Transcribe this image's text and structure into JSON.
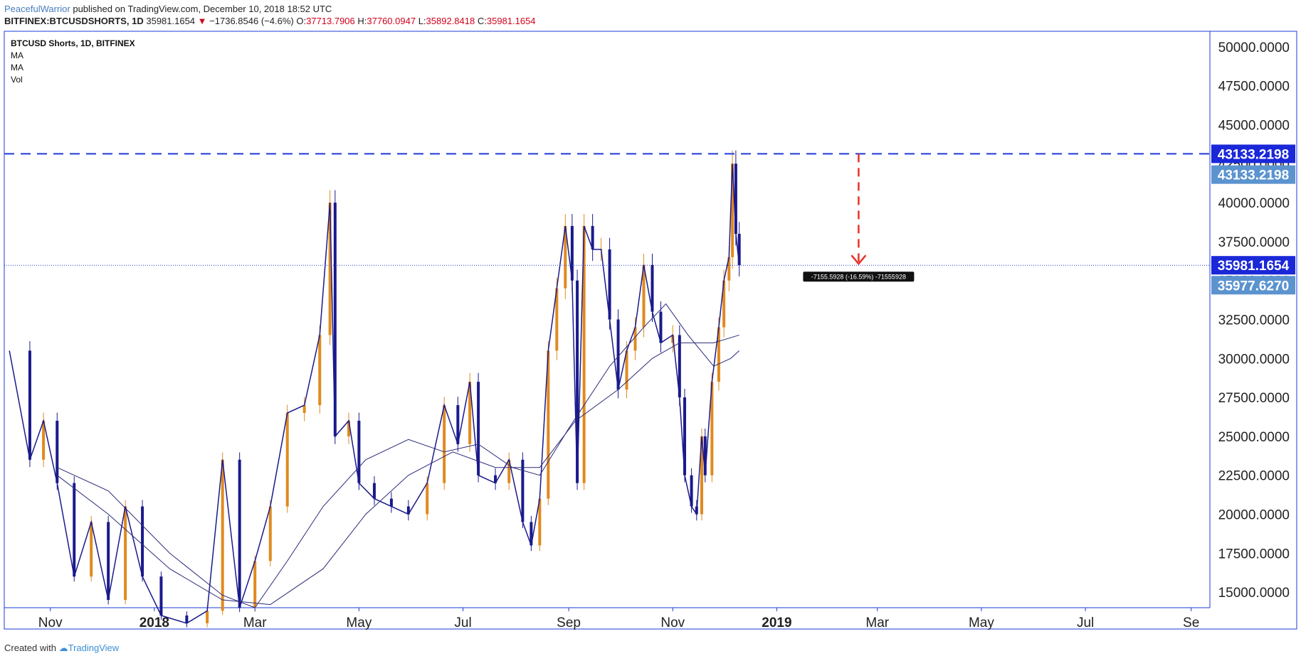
{
  "header": {
    "author": "PeacefulWarrior",
    "published": "published on TradingView.com, December 10, 2018 18:52 UTC",
    "symbol": "BITFINEX:BTCUSDSHORTS, 1D",
    "last": "35981.1654",
    "change": "−1736.8546 (−4.6%)",
    "o_label": "O:",
    "o": "37713.7906",
    "h_label": "H:",
    "h": "37760.0947",
    "l_label": "L:",
    "l": "35892.8418",
    "c_label": "C:",
    "c": "35981.1654"
  },
  "legend": {
    "title": "BTCUSD Shorts, 1D, BITFINEX",
    "items": [
      "MA",
      "MA",
      "Vol"
    ]
  },
  "footer": {
    "created_with": "Created with",
    "brand": "TradingView"
  },
  "colors": {
    "up": "#e08a1e",
    "down": "#1a1a8c",
    "ma": "#2b2b7a",
    "hline": "#1e3ad8",
    "arrow": "#e8322a",
    "axis": "#1e3ad8",
    "tag_dark": "#1a28d8",
    "tag_light": "#5b93cf"
  },
  "chart_data": {
    "type": "candlestick",
    "title": "BTCUSD Shorts, 1D, BITFINEX",
    "ylim": [
      14000,
      51000
    ],
    "y_ticks": [
      "50000.0000",
      "47500.0000",
      "45000.0000",
      "42500.0000",
      "40000.0000",
      "37500.0000",
      "35000.0000",
      "32500.0000",
      "30000.0000",
      "27500.0000",
      "25000.0000",
      "22500.0000",
      "20000.0000",
      "17500.0000",
      "15000.0000"
    ],
    "y_tick_values": [
      50000,
      47500,
      45000,
      42500,
      40000,
      37500,
      35000,
      32500,
      30000,
      27500,
      25000,
      22500,
      20000,
      17500,
      15000
    ],
    "x_ticks": [
      "Nov",
      "2018",
      "Mar",
      "May",
      "Jul",
      "Sep",
      "Nov",
      "2019",
      "Mar",
      "May",
      "Jul",
      "Se"
    ],
    "x_tick_bold": [
      false,
      true,
      false,
      false,
      false,
      false,
      false,
      true,
      false,
      false,
      false,
      false
    ],
    "x_range": [
      "2017-10-05",
      "2019-09-12"
    ],
    "x_tick_dates": [
      "2017-11-01",
      "2018-01-01",
      "2018-03-01",
      "2018-05-01",
      "2018-07-01",
      "2018-09-01",
      "2018-11-01",
      "2019-01-01",
      "2019-03-01",
      "2019-05-01",
      "2019-07-01",
      "2019-09-01"
    ],
    "series_close": [
      {
        "date": "2017-10-08",
        "v": 30500
      },
      {
        "date": "2017-10-20",
        "v": 23500
      },
      {
        "date": "2017-10-28",
        "v": 26000
      },
      {
        "date": "2017-11-05",
        "v": 22000
      },
      {
        "date": "2017-11-15",
        "v": 16000
      },
      {
        "date": "2017-11-25",
        "v": 19500
      },
      {
        "date": "2017-12-05",
        "v": 14500
      },
      {
        "date": "2017-12-15",
        "v": 20500
      },
      {
        "date": "2017-12-25",
        "v": 16000
      },
      {
        "date": "2018-01-05",
        "v": 13500
      },
      {
        "date": "2018-01-20",
        "v": 13000
      },
      {
        "date": "2018-02-01",
        "v": 13800
      },
      {
        "date": "2018-02-10",
        "v": 23500
      },
      {
        "date": "2018-02-20",
        "v": 14000
      },
      {
        "date": "2018-03-01",
        "v": 17000
      },
      {
        "date": "2018-03-10",
        "v": 20500
      },
      {
        "date": "2018-03-20",
        "v": 26500
      },
      {
        "date": "2018-03-30",
        "v": 27000
      },
      {
        "date": "2018-04-08",
        "v": 31500
      },
      {
        "date": "2018-04-14",
        "v": 40000
      },
      {
        "date": "2018-04-17",
        "v": 25000
      },
      {
        "date": "2018-04-25",
        "v": 26000
      },
      {
        "date": "2018-05-01",
        "v": 22000
      },
      {
        "date": "2018-05-10",
        "v": 21000
      },
      {
        "date": "2018-05-20",
        "v": 20500
      },
      {
        "date": "2018-05-30",
        "v": 20000
      },
      {
        "date": "2018-06-10",
        "v": 22000
      },
      {
        "date": "2018-06-20",
        "v": 27000
      },
      {
        "date": "2018-06-28",
        "v": 24500
      },
      {
        "date": "2018-07-05",
        "v": 28500
      },
      {
        "date": "2018-07-10",
        "v": 22500
      },
      {
        "date": "2018-07-20",
        "v": 22000
      },
      {
        "date": "2018-07-28",
        "v": 23500
      },
      {
        "date": "2018-08-05",
        "v": 19500
      },
      {
        "date": "2018-08-10",
        "v": 18000
      },
      {
        "date": "2018-08-15",
        "v": 21000
      },
      {
        "date": "2018-08-20",
        "v": 30500
      },
      {
        "date": "2018-08-25",
        "v": 34500
      },
      {
        "date": "2018-08-30",
        "v": 38500
      },
      {
        "date": "2018-09-03",
        "v": 35000
      },
      {
        "date": "2018-09-06",
        "v": 22000
      },
      {
        "date": "2018-09-10",
        "v": 38500
      },
      {
        "date": "2018-09-15",
        "v": 37000
      },
      {
        "date": "2018-09-20",
        "v": 37000
      },
      {
        "date": "2018-09-25",
        "v": 32500
      },
      {
        "date": "2018-09-30",
        "v": 28000
      },
      {
        "date": "2018-10-05",
        "v": 30500
      },
      {
        "date": "2018-10-10",
        "v": 32000
      },
      {
        "date": "2018-10-15",
        "v": 36000
      },
      {
        "date": "2018-10-20",
        "v": 33000
      },
      {
        "date": "2018-10-25",
        "v": 31000
      },
      {
        "date": "2018-11-01",
        "v": 31500
      },
      {
        "date": "2018-11-05",
        "v": 27500
      },
      {
        "date": "2018-11-08",
        "v": 22500
      },
      {
        "date": "2018-11-12",
        "v": 20500
      },
      {
        "date": "2018-11-15",
        "v": 20000
      },
      {
        "date": "2018-11-18",
        "v": 25000
      },
      {
        "date": "2018-11-20",
        "v": 22500
      },
      {
        "date": "2018-11-24",
        "v": 28500
      },
      {
        "date": "2018-11-28",
        "v": 32000
      },
      {
        "date": "2018-12-01",
        "v": 35000
      },
      {
        "date": "2018-12-04",
        "v": 36500
      },
      {
        "date": "2018-12-06",
        "v": 42500
      },
      {
        "date": "2018-12-08",
        "v": 38000
      },
      {
        "date": "2018-12-10",
        "v": 35981
      }
    ],
    "ma_fast": [
      {
        "date": "2017-11-05",
        "v": 23000
      },
      {
        "date": "2017-12-05",
        "v": 21500
      },
      {
        "date": "2018-01-10",
        "v": 17500
      },
      {
        "date": "2018-02-10",
        "v": 14800
      },
      {
        "date": "2018-03-01",
        "v": 14000
      },
      {
        "date": "2018-03-20",
        "v": 17000
      },
      {
        "date": "2018-04-10",
        "v": 20500
      },
      {
        "date": "2018-05-05",
        "v": 23500
      },
      {
        "date": "2018-05-30",
        "v": 24800
      },
      {
        "date": "2018-06-20",
        "v": 24000
      },
      {
        "date": "2018-07-10",
        "v": 24500
      },
      {
        "date": "2018-07-30",
        "v": 23000
      },
      {
        "date": "2018-08-15",
        "v": 22500
      },
      {
        "date": "2018-09-01",
        "v": 25500
      },
      {
        "date": "2018-09-25",
        "v": 29500
      },
      {
        "date": "2018-10-15",
        "v": 32000
      },
      {
        "date": "2018-10-28",
        "v": 33500
      },
      {
        "date": "2018-11-10",
        "v": 31500
      },
      {
        "date": "2018-11-25",
        "v": 29500
      },
      {
        "date": "2018-12-05",
        "v": 30000
      },
      {
        "date": "2018-12-10",
        "v": 30500
      }
    ],
    "ma_slow": [
      {
        "date": "2017-11-05",
        "v": 22500
      },
      {
        "date": "2017-12-05",
        "v": 20000
      },
      {
        "date": "2018-01-10",
        "v": 16500
      },
      {
        "date": "2018-02-10",
        "v": 14500
      },
      {
        "date": "2018-03-10",
        "v": 14200
      },
      {
        "date": "2018-04-10",
        "v": 16500
      },
      {
        "date": "2018-05-05",
        "v": 20000
      },
      {
        "date": "2018-05-30",
        "v": 22500
      },
      {
        "date": "2018-06-25",
        "v": 24000
      },
      {
        "date": "2018-07-20",
        "v": 23000
      },
      {
        "date": "2018-08-15",
        "v": 23000
      },
      {
        "date": "2018-09-05",
        "v": 26000
      },
      {
        "date": "2018-09-30",
        "v": 28000
      },
      {
        "date": "2018-10-20",
        "v": 30000
      },
      {
        "date": "2018-11-05",
        "v": 31000
      },
      {
        "date": "2018-11-25",
        "v": 31000
      },
      {
        "date": "2018-12-10",
        "v": 31500
      }
    ],
    "horizontal_level": 43133.2198,
    "current_level": 35981.1654,
    "price_tags": [
      {
        "label": "43133.2198",
        "value": 43133.2198,
        "style": "dark"
      },
      {
        "label": "43133.2198",
        "value": 41800,
        "style": "light"
      },
      {
        "label": "35981.1654",
        "value": 35981.1654,
        "style": "dark"
      },
      {
        "label": "35977.6270",
        "value": 34700,
        "style": "light"
      }
    ],
    "measure_label": "-7155.5928 (-16.59%) -71555928",
    "arrow": {
      "from_value": 43133.2198,
      "to_value": 35981.1654,
      "date": "2019-02-18"
    }
  }
}
